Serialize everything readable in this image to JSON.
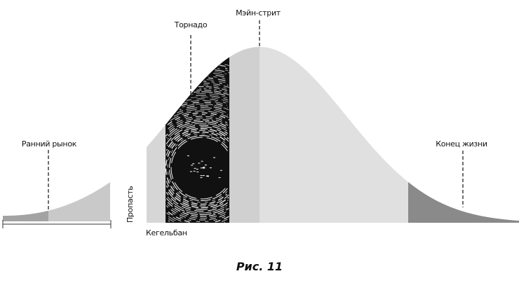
{
  "labels": {
    "early_market": "Ранний рынок",
    "chasm": "Пропасть",
    "bowling_alley": "Кегельбан",
    "tornado": "Торнадо",
    "main_street": "Мэйн-стрит",
    "end_of_life": "Конец жизни"
  },
  "caption": "Рис. 11",
  "colors": {
    "early_dark": "#a3a3a3",
    "early_light": "#c9c9c9",
    "bowling": "#d6d6d6",
    "tornado": "#111111",
    "main_left": "#d0d0d0",
    "main_right": "#e0e0e0",
    "end_of_life": "#8a8a8a"
  }
}
